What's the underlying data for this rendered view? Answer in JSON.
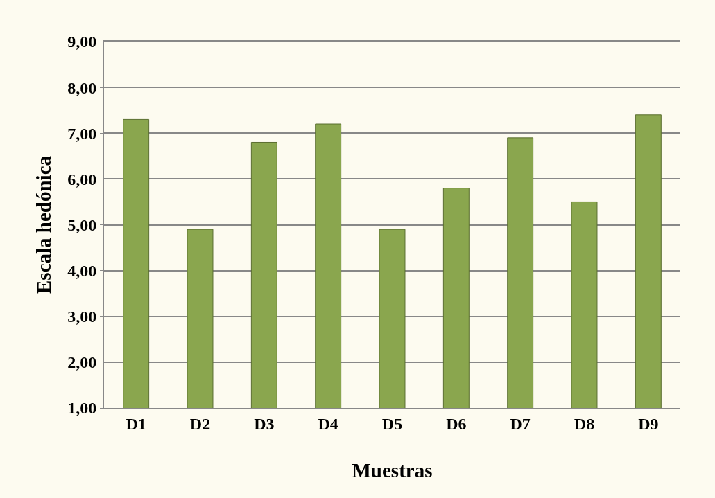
{
  "chart_data": {
    "type": "bar",
    "xlabel": "Muestras",
    "ylabel": "Escala hedónica",
    "categories": [
      "D1",
      "D2",
      "D3",
      "D4",
      "D5",
      "D6",
      "D7",
      "D8",
      "D9"
    ],
    "values": [
      7.3,
      4.9,
      6.8,
      7.2,
      4.9,
      5.8,
      6.9,
      5.5,
      7.4
    ],
    "color": "#8aa64e",
    "ylim": [
      1,
      9
    ],
    "yticks": [
      {
        "value": 1,
        "label": "1,00"
      },
      {
        "value": 2,
        "label": "2,00"
      },
      {
        "value": 3,
        "label": "3,00"
      },
      {
        "value": 4,
        "label": "4,00"
      },
      {
        "value": 5,
        "label": "5,00"
      },
      {
        "value": 6,
        "label": "6,00"
      },
      {
        "value": 7,
        "label": "7,00"
      },
      {
        "value": 8,
        "label": "8,00"
      },
      {
        "value": 9,
        "label": "9,00"
      }
    ],
    "grid": "y"
  }
}
